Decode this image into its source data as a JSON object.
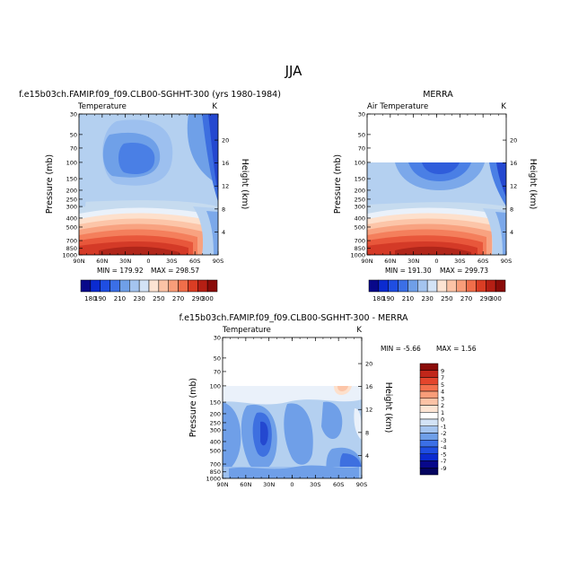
{
  "page_title": "JJA",
  "panel_ticks": {
    "pressure": [
      "30",
      "50",
      "70",
      "100",
      "150",
      "200",
      "250",
      "300",
      "400",
      "500",
      "700",
      "850",
      "1000"
    ],
    "height": [
      "20",
      "16",
      "12",
      "8",
      "4"
    ],
    "lat": [
      "90N",
      "60N",
      "30N",
      "0",
      "30S",
      "60S",
      "90S"
    ]
  },
  "chart_data": [
    {
      "type": "heatmap",
      "title": "f.e15b03ch.FAMIP.f09_f09.CLB00-SGHHT-300 (yrs 1980-1984)",
      "corner_left": "Temperature",
      "corner_right": "K",
      "ylabel": "Pressure (mb)",
      "y2label": "Height (km)",
      "xlim": [
        "90N",
        "90S"
      ],
      "ylim": [
        1000,
        30
      ],
      "min_label": "MIN = 179.92",
      "max_label": "MAX = 298.57",
      "colorbar_levels": [
        180,
        190,
        200,
        210,
        220,
        230,
        240,
        250,
        260,
        270,
        280,
        290,
        300
      ],
      "colorbar_labels": [
        "180",
        "190",
        "210",
        "230",
        "250",
        "270",
        "290",
        "300"
      ]
    },
    {
      "type": "heatmap",
      "title": "MERRA",
      "corner_left": "Air Temperature",
      "corner_right": "K",
      "ylabel": "Pressure (mb)",
      "y2label": "Height (km)",
      "xlim": [
        "90N",
        "90S"
      ],
      "ylim": [
        1000,
        30
      ],
      "data_top": 100,
      "min_label": "MIN = 191.30",
      "max_label": "MAX = 299.73",
      "colorbar_levels": [
        180,
        190,
        200,
        210,
        220,
        230,
        240,
        250,
        260,
        270,
        280,
        290,
        300
      ],
      "colorbar_labels": [
        "180",
        "190",
        "210",
        "230",
        "250",
        "270",
        "290",
        "300"
      ]
    },
    {
      "type": "heatmap",
      "title": "f.e15b03ch.FAMIP.f09_f09.CLB00-SGHHT-300 - MERRA",
      "corner_left": "Temperature",
      "corner_right": "K",
      "ylabel": "Pressure (mb)",
      "y2label": "Height (km)",
      "xlim": [
        "90N",
        "90S"
      ],
      "ylim": [
        1000,
        30
      ],
      "data_top": 100,
      "min_label": "MIN = -5.66",
      "max_label": "MAX = 1.56",
      "colorbar_levels": [
        9,
        7,
        5,
        4,
        3,
        2,
        1,
        0,
        -1,
        -2,
        -3,
        -4,
        -5,
        -7,
        -9
      ],
      "colorbar_labels": [
        "9",
        "7",
        "5",
        "4",
        "3",
        "2",
        "1",
        "0",
        "-1",
        "-2",
        "-3",
        "-4",
        "-5",
        "-7",
        "-9"
      ]
    }
  ]
}
